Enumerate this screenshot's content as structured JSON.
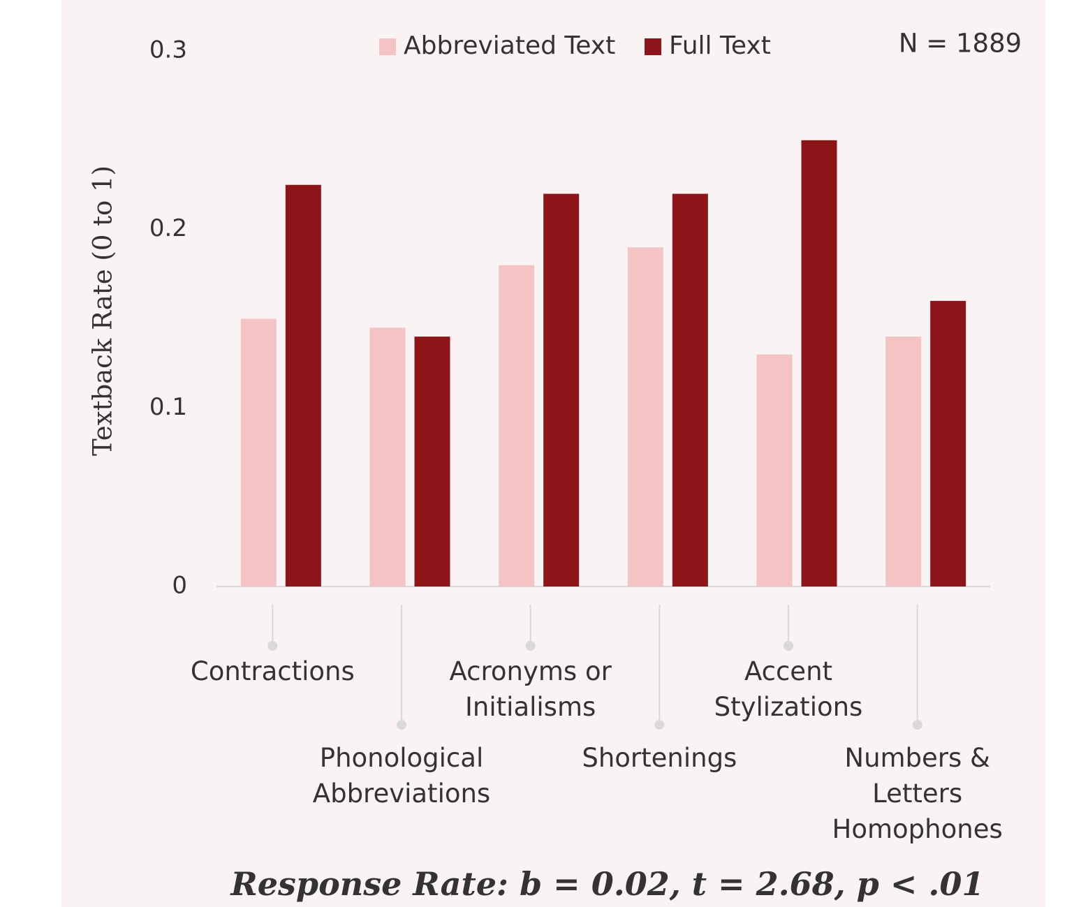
{
  "chart_data": {
    "type": "bar",
    "title": "Response Rate: b = 0.02, t = 2.68, p < .01",
    "annotation": "N = 1889",
    "y_label": "Textback Rate (0 to 1)",
    "categories": [
      "Contractions",
      "Phonological\nAbbreviations",
      "Acronyms or\nInitialisms",
      "Shortenings",
      "Accent\nStylizations",
      "Numbers &\nLetters\nHomophones"
    ],
    "series": [
      {
        "name": "Abbreviated Text",
        "color": "#f4c4c4",
        "values": [
          0.15,
          0.145,
          0.18,
          0.19,
          0.13,
          0.14
        ]
      },
      {
        "name": "Full Text",
        "color": "#8b1518",
        "values": [
          0.225,
          0.14,
          0.22,
          0.22,
          0.25,
          0.16
        ]
      }
    ],
    "ylim": [
      0,
      0.3
    ],
    "yticks": [
      0,
      0.1,
      0.2,
      0.3
    ],
    "grid": false,
    "legend": "top"
  }
}
